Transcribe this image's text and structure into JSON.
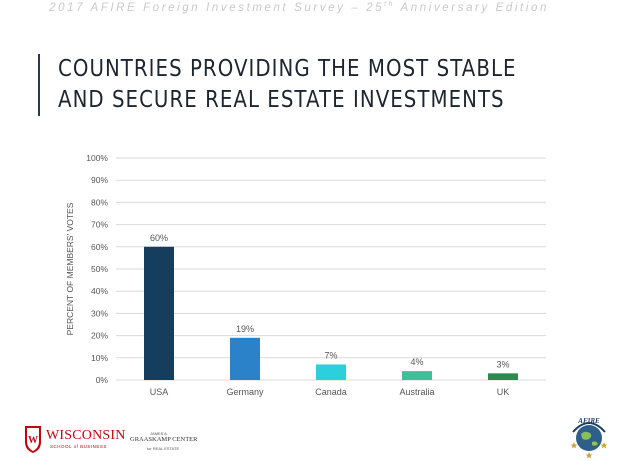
{
  "header": {
    "text_main": "2017 AFIRE Foreign Investment Survey – 25",
    "text_sup": "th",
    "text_tail": " Anniversary Edition"
  },
  "title": {
    "line1": "COUNTRIES PROVIDING THE MOST STABLE",
    "line2": "AND SECURE REAL ESTATE INVESTMENTS"
  },
  "chart_data": {
    "type": "bar",
    "title": "COUNTRIES PROVIDING THE MOST STABLE AND SECURE REAL ESTATE INVESTMENTS",
    "categories": [
      "USA",
      "Germany",
      "Canada",
      "Australia",
      "UK"
    ],
    "values": [
      60,
      19,
      7,
      4,
      3
    ],
    "data_labels": [
      "60%",
      "19%",
      "7%",
      "4%",
      "3%"
    ],
    "bar_colors": [
      "#153d5e",
      "#2b82c9",
      "#2bd0dc",
      "#3dbf99",
      "#2c8a4e"
    ],
    "xlabel": "",
    "ylabel": "PERCENT OF MEMBERS' VOTES",
    "ylim": [
      0,
      100
    ],
    "yticks": [
      0,
      10,
      20,
      30,
      40,
      50,
      60,
      70,
      80,
      90,
      100
    ],
    "ytick_labels": [
      "0%",
      "10%",
      "20%",
      "30%",
      "40%",
      "50%",
      "60%",
      "70%",
      "80%",
      "90%",
      "100%"
    ],
    "grid": true,
    "legend": "none"
  },
  "footer": {
    "wisconsin": "WISCONSIN",
    "wisconsin_sub": "SCHOOL of BUSINESS",
    "graaskamp_pre": "JAMES A.",
    "graaskamp": "GRAASKAMP CENTER",
    "graaskamp_sub": "for REAL ESTATE",
    "afire_logo": "AFIRE"
  }
}
